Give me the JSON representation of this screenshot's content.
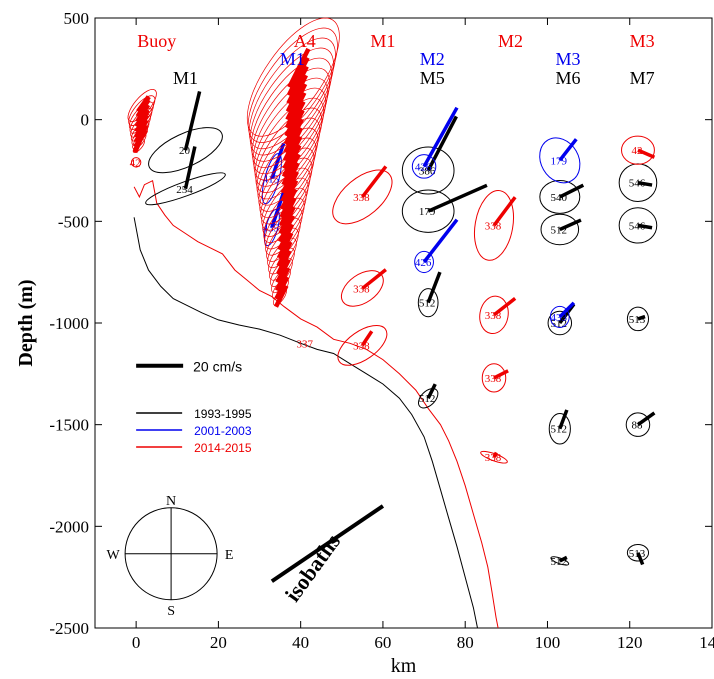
{
  "chart_data": {
    "type": "scatter",
    "xlabel": "km",
    "ylabel": "Depth (m)",
    "xlim": [
      -10,
      140
    ],
    "ylim": [
      -2500,
      500
    ],
    "xticks": [
      0,
      20,
      40,
      60,
      80,
      100,
      120,
      140
    ],
    "yticks": [
      500,
      0,
      -500,
      -1000,
      -1500,
      -2000,
      -2500
    ],
    "grid": false,
    "legend": {
      "placement": "lower-left",
      "entries": [
        {
          "label": "1993-1995",
          "color": "#000000"
        },
        {
          "label": "2001-2003",
          "color": "#0000ee"
        },
        {
          "label": "2014-2015",
          "color": "#ee0000"
        }
      ]
    },
    "scale_label": "20 cm/s",
    "scale_speed": 20,
    "isobaths_label": "isobaths",
    "compass": {
      "N": "N",
      "E": "E",
      "S": "S",
      "W": "W"
    },
    "mooring_labels": [
      {
        "text": "Buoy",
        "x": 5,
        "row": 1,
        "color": "#ee0000"
      },
      {
        "text": "M1",
        "x": 12,
        "row": 3,
        "color": "#000000"
      },
      {
        "text": "A4",
        "x": 41,
        "row": 1,
        "color": "#ee0000"
      },
      {
        "text": "M1",
        "x": 38,
        "row": 2,
        "color": "#0000ee"
      },
      {
        "text": "M1",
        "x": 60,
        "row": 1,
        "color": "#ee0000"
      },
      {
        "text": "M2",
        "x": 72,
        "row": 2,
        "color": "#0000ee"
      },
      {
        "text": "M5",
        "x": 72,
        "row": 3,
        "color": "#000000"
      },
      {
        "text": "M2",
        "x": 91,
        "row": 1,
        "color": "#ee0000"
      },
      {
        "text": "M3",
        "x": 105,
        "row": 2,
        "color": "#0000ee"
      },
      {
        "text": "M6",
        "x": 105,
        "row": 3,
        "color": "#000000"
      },
      {
        "text": "M3",
        "x": 123,
        "row": 1,
        "color": "#ee0000"
      },
      {
        "text": "M7",
        "x": 123,
        "row": 3,
        "color": "#000000"
      }
    ],
    "series": [
      {
        "name": "1993-1995",
        "color": "#000000",
        "points": [
          {
            "x": 12,
            "depth": -150,
            "u": 6,
            "v": 25,
            "a": 7,
            "b": 17,
            "ang": 65,
            "label": "20"
          },
          {
            "x": 12,
            "depth": -340,
            "u": 4,
            "v": 18,
            "a": 3,
            "b": 18,
            "ang": 70,
            "label": "254"
          },
          {
            "x": 71,
            "depth": -250,
            "u": 12,
            "v": 23,
            "a": 11,
            "b": 10,
            "ang": 0,
            "label": "386"
          },
          {
            "x": 71,
            "depth": -450,
            "u": 25,
            "v": 11,
            "a": 11,
            "b": 9,
            "ang": 0,
            "label": "179"
          },
          {
            "x": 71,
            "depth": -900,
            "u": 5,
            "v": 13,
            "a": 4.2,
            "b": 6,
            "ang": 0,
            "label": "512"
          },
          {
            "x": 71,
            "depth": -1370,
            "u": 3,
            "v": 6,
            "a": 3,
            "b": 5,
            "ang": 45,
            "label": "512"
          },
          {
            "x": 103,
            "depth": -380,
            "u": 10,
            "v": 5,
            "a": 8.5,
            "b": 7,
            "ang": 0,
            "label": "540"
          },
          {
            "x": 103,
            "depth": -540,
            "u": 9,
            "v": 4,
            "a": 8,
            "b": 6.5,
            "ang": 0,
            "label": "512"
          },
          {
            "x": 103,
            "depth": -1000,
            "u": 6,
            "v": 8,
            "a": 5,
            "b": 5,
            "ang": 0,
            "label": "512"
          },
          {
            "x": 103,
            "depth": -1520,
            "u": 3,
            "v": 8,
            "a": 4.5,
            "b": 6.5,
            "ang": 0,
            "label": "512"
          },
          {
            "x": 103,
            "depth": -2170,
            "u": 3,
            "v": 1.5,
            "a": 4,
            "b": 1.2,
            "ang": 20,
            "label": "512"
          },
          {
            "x": 122,
            "depth": -310,
            "u": 6,
            "v": -1,
            "a": 8,
            "b": 8,
            "ang": 0,
            "label": "546"
          },
          {
            "x": 122,
            "depth": -520,
            "u": 6,
            "v": -1,
            "a": 8,
            "b": 7.5,
            "ang": 0,
            "label": "546"
          },
          {
            "x": 122,
            "depth": -980,
            "u": 3,
            "v": 1,
            "a": 4.5,
            "b": 5,
            "ang": 0,
            "label": "513"
          },
          {
            "x": 122,
            "depth": -1500,
            "u": 7,
            "v": 5,
            "a": 5,
            "b": 5,
            "ang": 0,
            "label": "88"
          },
          {
            "x": 122,
            "depth": -2130,
            "u": 2,
            "v": -5,
            "a": 4.5,
            "b": 3.5,
            "ang": 0,
            "label": "513"
          }
        ]
      },
      {
        "name": "2001-2003",
        "color": "#0000ee",
        "points": [
          {
            "x": 33,
            "depth": -290,
            "u": 5,
            "v": 15,
            "a": 3,
            "b": 11,
            "ang": 15,
            "label": "415"
          },
          {
            "x": 33,
            "depth": -530,
            "u": 5,
            "v": 15,
            "a": 2.5,
            "b": 8,
            "ang": 15,
            "label": "435"
          },
          {
            "x": 70,
            "depth": -230,
            "u": 14,
            "v": 25,
            "a": 5,
            "b": 5,
            "ang": 0,
            "label": "426"
          },
          {
            "x": 70,
            "depth": -700,
            "u": 14,
            "v": 18,
            "a": 4,
            "b": 4.5,
            "ang": 0,
            "label": "426"
          },
          {
            "x": 103,
            "depth": -200,
            "u": 7,
            "v": 9,
            "a": 8,
            "b": 10,
            "ang": -30,
            "label": "179"
          },
          {
            "x": 103,
            "depth": -970,
            "u": 6,
            "v": 6,
            "a": 4,
            "b": 4.5,
            "ang": 0,
            "label": "433"
          }
        ]
      },
      {
        "name": "2014-2015",
        "color": "#ee0000",
        "points": [
          {
            "x": 0,
            "depth": -210,
            "u": 0,
            "v": 0,
            "a": 2,
            "b": 2,
            "ang": 0,
            "label": "42"
          },
          {
            "x": 55,
            "depth": -380,
            "u": 10,
            "v": 13,
            "a": 8,
            "b": 15,
            "ang": 50,
            "label": "338"
          },
          {
            "x": 55,
            "depth": -830,
            "u": 10,
            "v": 8,
            "a": 6,
            "b": 10,
            "ang": 55,
            "label": "338"
          },
          {
            "x": 55,
            "depth": -1110,
            "u": 4,
            "v": 6,
            "a": 6,
            "b": 12,
            "ang": 55,
            "label": "338"
          },
          {
            "x": 87,
            "depth": -520,
            "u": 9,
            "v": 12,
            "a": 8,
            "b": 15,
            "ang": 10,
            "label": "338"
          },
          {
            "x": 87,
            "depth": -960,
            "u": 9,
            "v": 7,
            "a": 6,
            "b": 8,
            "ang": 10,
            "label": "338"
          },
          {
            "x": 87,
            "depth": -1270,
            "u": 6,
            "v": 3,
            "a": 5,
            "b": 6,
            "ang": 0,
            "label": "338"
          },
          {
            "x": 87,
            "depth": -1660,
            "u": 1,
            "v": 2,
            "a": 6,
            "b": 1.5,
            "ang": 20,
            "label": "338"
          },
          {
            "x": 122,
            "depth": -150,
            "u": 7,
            "v": -3,
            "a": 7,
            "b": 6,
            "ang": 0,
            "label": "42"
          }
        ]
      }
    ]
  }
}
